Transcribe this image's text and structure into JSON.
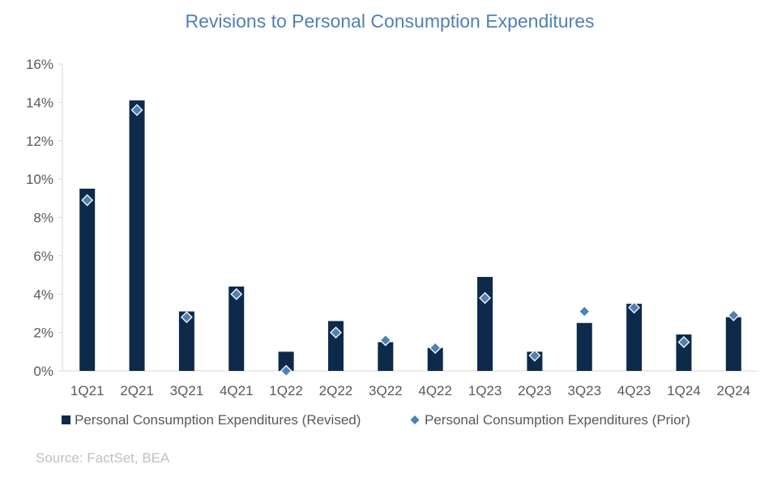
{
  "chart_data": {
    "type": "bar",
    "title": "Revisions to Personal Consumption Expenditures",
    "categories": [
      "1Q21",
      "2Q21",
      "3Q21",
      "4Q21",
      "1Q22",
      "2Q22",
      "3Q22",
      "4Q22",
      "1Q23",
      "2Q23",
      "3Q23",
      "4Q23",
      "1Q24",
      "2Q24"
    ],
    "series": [
      {
        "name": "Personal Consumption Expenditures (Revised)",
        "kind": "bar",
        "color": "#0d2a4a",
        "values": [
          9.5,
          14.1,
          3.1,
          4.4,
          1.0,
          2.6,
          1.5,
          1.2,
          4.9,
          1.0,
          2.5,
          3.5,
          1.9,
          2.8
        ]
      },
      {
        "name": "Personal Consumption Expenditures (Prior)",
        "kind": "marker",
        "marker": "diamond",
        "color": "#4f81b4",
        "values": [
          8.9,
          13.6,
          2.8,
          4.0,
          0.0,
          2.0,
          1.6,
          1.2,
          3.8,
          0.8,
          3.1,
          3.3,
          1.5,
          2.9
        ]
      }
    ],
    "ylim": [
      0,
      16
    ],
    "yticks": [
      0,
      2,
      4,
      6,
      8,
      10,
      12,
      14,
      16
    ],
    "ytick_labels": [
      "0%",
      "2%",
      "4%",
      "6%",
      "8%",
      "10%",
      "12%",
      "14%",
      "16%"
    ],
    "xlabel": "",
    "ylabel": "",
    "grid": false,
    "legend_position": "bottom-left"
  },
  "source": "Source: FactSet, BEA"
}
